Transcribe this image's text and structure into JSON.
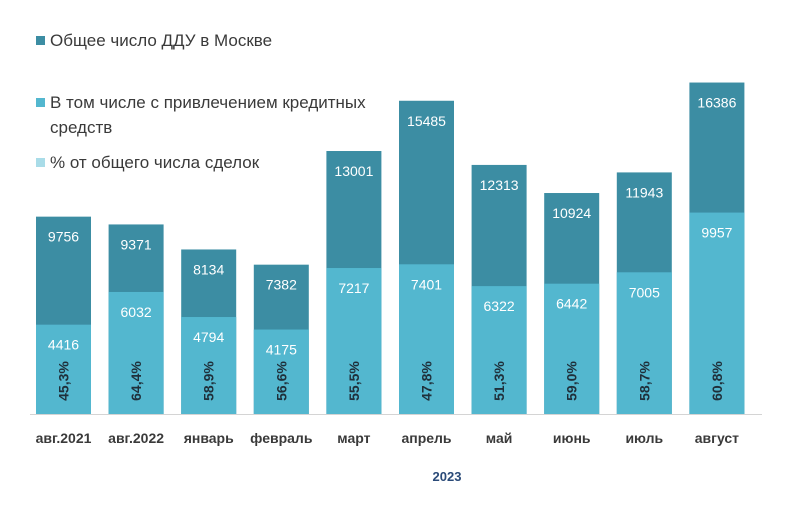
{
  "chart_data": {
    "type": "bar",
    "stacked": true,
    "categories": [
      "авг.2021",
      "авг.2022",
      "январь",
      "февраль",
      "март",
      "апрель",
      "май",
      "июнь",
      "июль",
      "август"
    ],
    "group_label": "2023",
    "series": [
      {
        "name": "Общее число ДДУ в Москве",
        "values": [
          9756,
          9371,
          8134,
          7382,
          13001,
          15485,
          12313,
          10924,
          11943,
          16386
        ],
        "color": "#3c8da3"
      },
      {
        "name": "В том числе с привлечением кредитных средств",
        "values": [
          4416,
          6032,
          4794,
          4175,
          7217,
          7401,
          6322,
          6442,
          7005,
          9957
        ],
        "color": "#53b7cf"
      },
      {
        "name": "% от общего числа сделок",
        "values": [
          "45,3%",
          "64,4%",
          "58,9%",
          "56,6%",
          "55,5%",
          "47,8%",
          "51,3%",
          "59,0%",
          "58,7%",
          "60,8%"
        ],
        "color": "#a9dce8"
      }
    ],
    "ylim": [
      0,
      17500
    ],
    "grid": false,
    "legend_position": "top-left"
  }
}
